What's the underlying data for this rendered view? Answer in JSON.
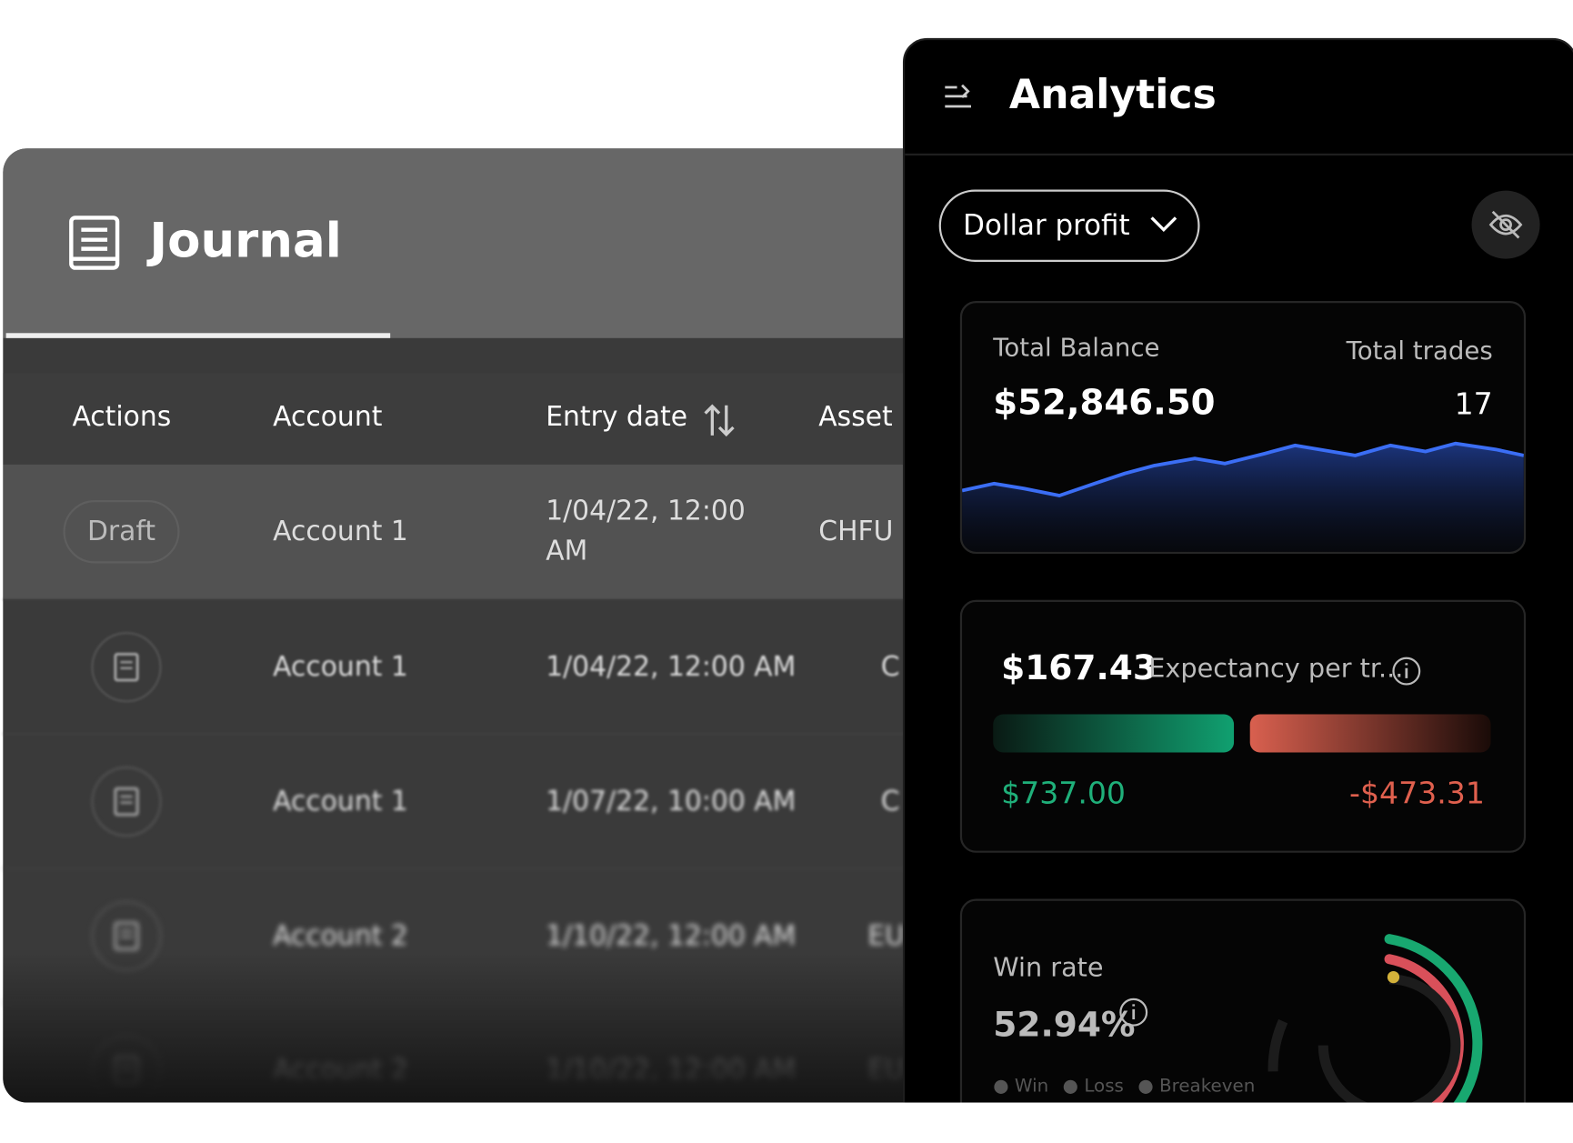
{
  "journal": {
    "title": "Journal",
    "columns": [
      "Actions",
      "Account",
      "Entry date",
      "Asset"
    ],
    "rows": [
      {
        "action": "Draft",
        "account": "Account 1",
        "date": "1/04/22, 12:00 AM",
        "asset": "CHFU"
      },
      {
        "account": "Account 1",
        "date": "1/04/22, 12:00 AM",
        "asset": "C"
      },
      {
        "account": "Account 1",
        "date": "1/07/22, 10:00 AM",
        "asset": "C"
      },
      {
        "account": "Account 2",
        "date": "1/10/22, 12:00 AM",
        "asset": "EU"
      },
      {
        "account": "Account 2",
        "date": "1/10/22, 12:00 AM",
        "asset": "EU"
      }
    ]
  },
  "analytics": {
    "title": "Analytics",
    "metric": "Dollar profit",
    "balance": {
      "label": "Total Balance",
      "value": "$52,846.50"
    },
    "trades": {
      "label": "Total trades",
      "value": "17"
    },
    "expectancy": {
      "value": "$167.43",
      "label": "Expectancy per tr...",
      "win": "$737.00",
      "loss": "-$473.31"
    },
    "winrate": {
      "label": "Win rate",
      "value": "52.94%",
      "legend": [
        "Win",
        "Loss",
        "Breakeven"
      ]
    }
  }
}
